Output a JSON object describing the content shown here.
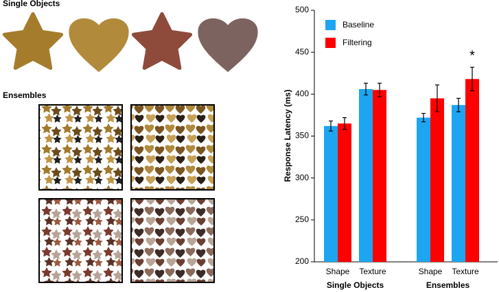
{
  "panels": {
    "single_objects_label": "Single Objects",
    "ensembles_label": "Ensembles"
  },
  "chart_data": {
    "type": "bar",
    "y_label": "Response Latency (ms)",
    "categories": [
      "Shape",
      "Texture",
      "Shape",
      "Texture"
    ],
    "group_labels": [
      "Single Objects",
      "Ensembles"
    ],
    "series": [
      {
        "name": "Baseline",
        "color": "#1ea5f2",
        "values": [
          362,
          406,
          372,
          387
        ],
        "errors": [
          6,
          7,
          5,
          8
        ]
      },
      {
        "name": "Filtering",
        "color": "#ff0000",
        "values": [
          365,
          405,
          395,
          418
        ],
        "errors": [
          7,
          8,
          16,
          14
        ]
      }
    ],
    "significance_marker": "*",
    "ylim": [
      200,
      500
    ],
    "yticks": [
      200,
      250,
      300,
      350,
      400,
      450,
      500
    ],
    "legend": "upper left"
  }
}
